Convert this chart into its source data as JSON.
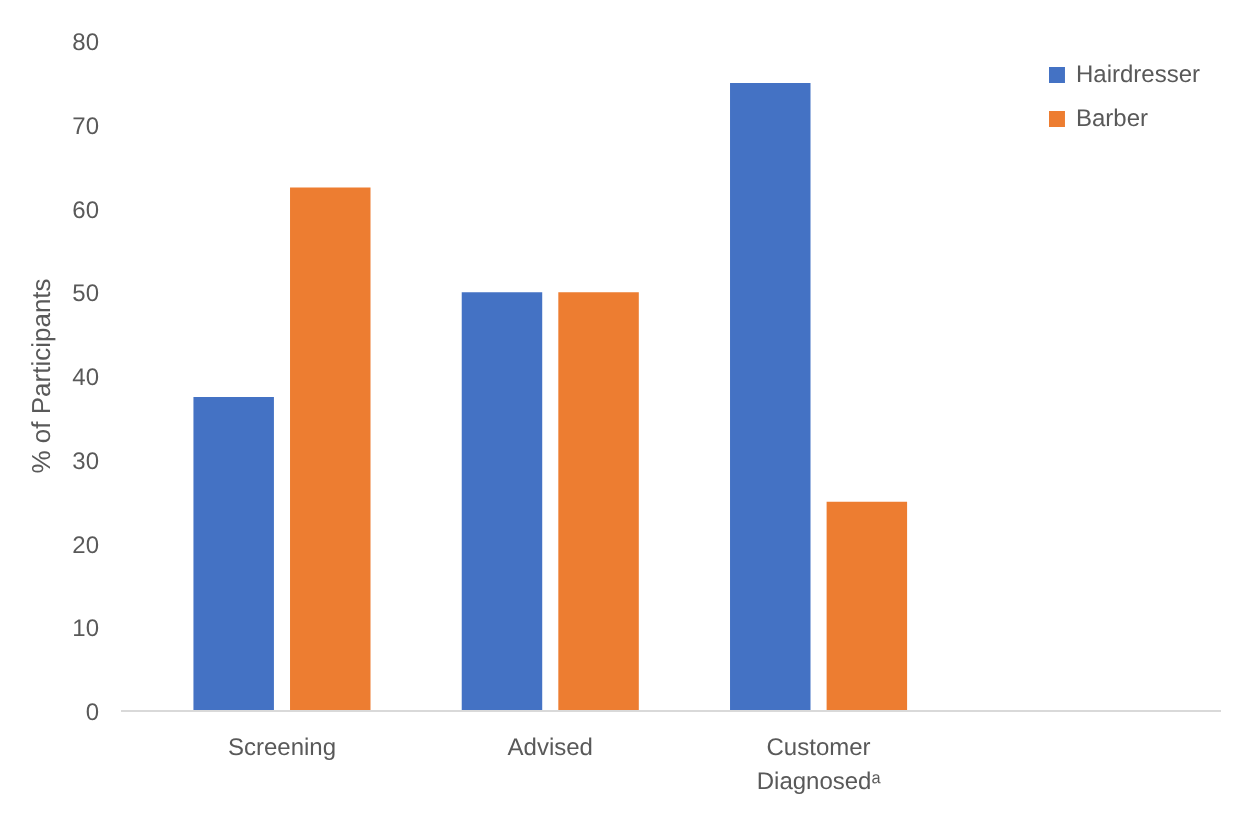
{
  "chart_data": {
    "type": "bar",
    "ylabel": "% of Participants",
    "categories": [
      "Screening",
      "Advised",
      "Customer Diagnosedᵃ"
    ],
    "series": [
      {
        "name": "Hairdresser",
        "color": "#4472c4",
        "values": [
          37.5,
          50,
          75
        ]
      },
      {
        "name": "Barber",
        "color": "#ed7d31",
        "values": [
          62.5,
          50,
          25
        ]
      }
    ],
    "ylim": [
      0,
      80
    ],
    "yticks": [
      0,
      10,
      20,
      30,
      40,
      50,
      60,
      70,
      80
    ],
    "grid": false,
    "legend": "top right"
  }
}
